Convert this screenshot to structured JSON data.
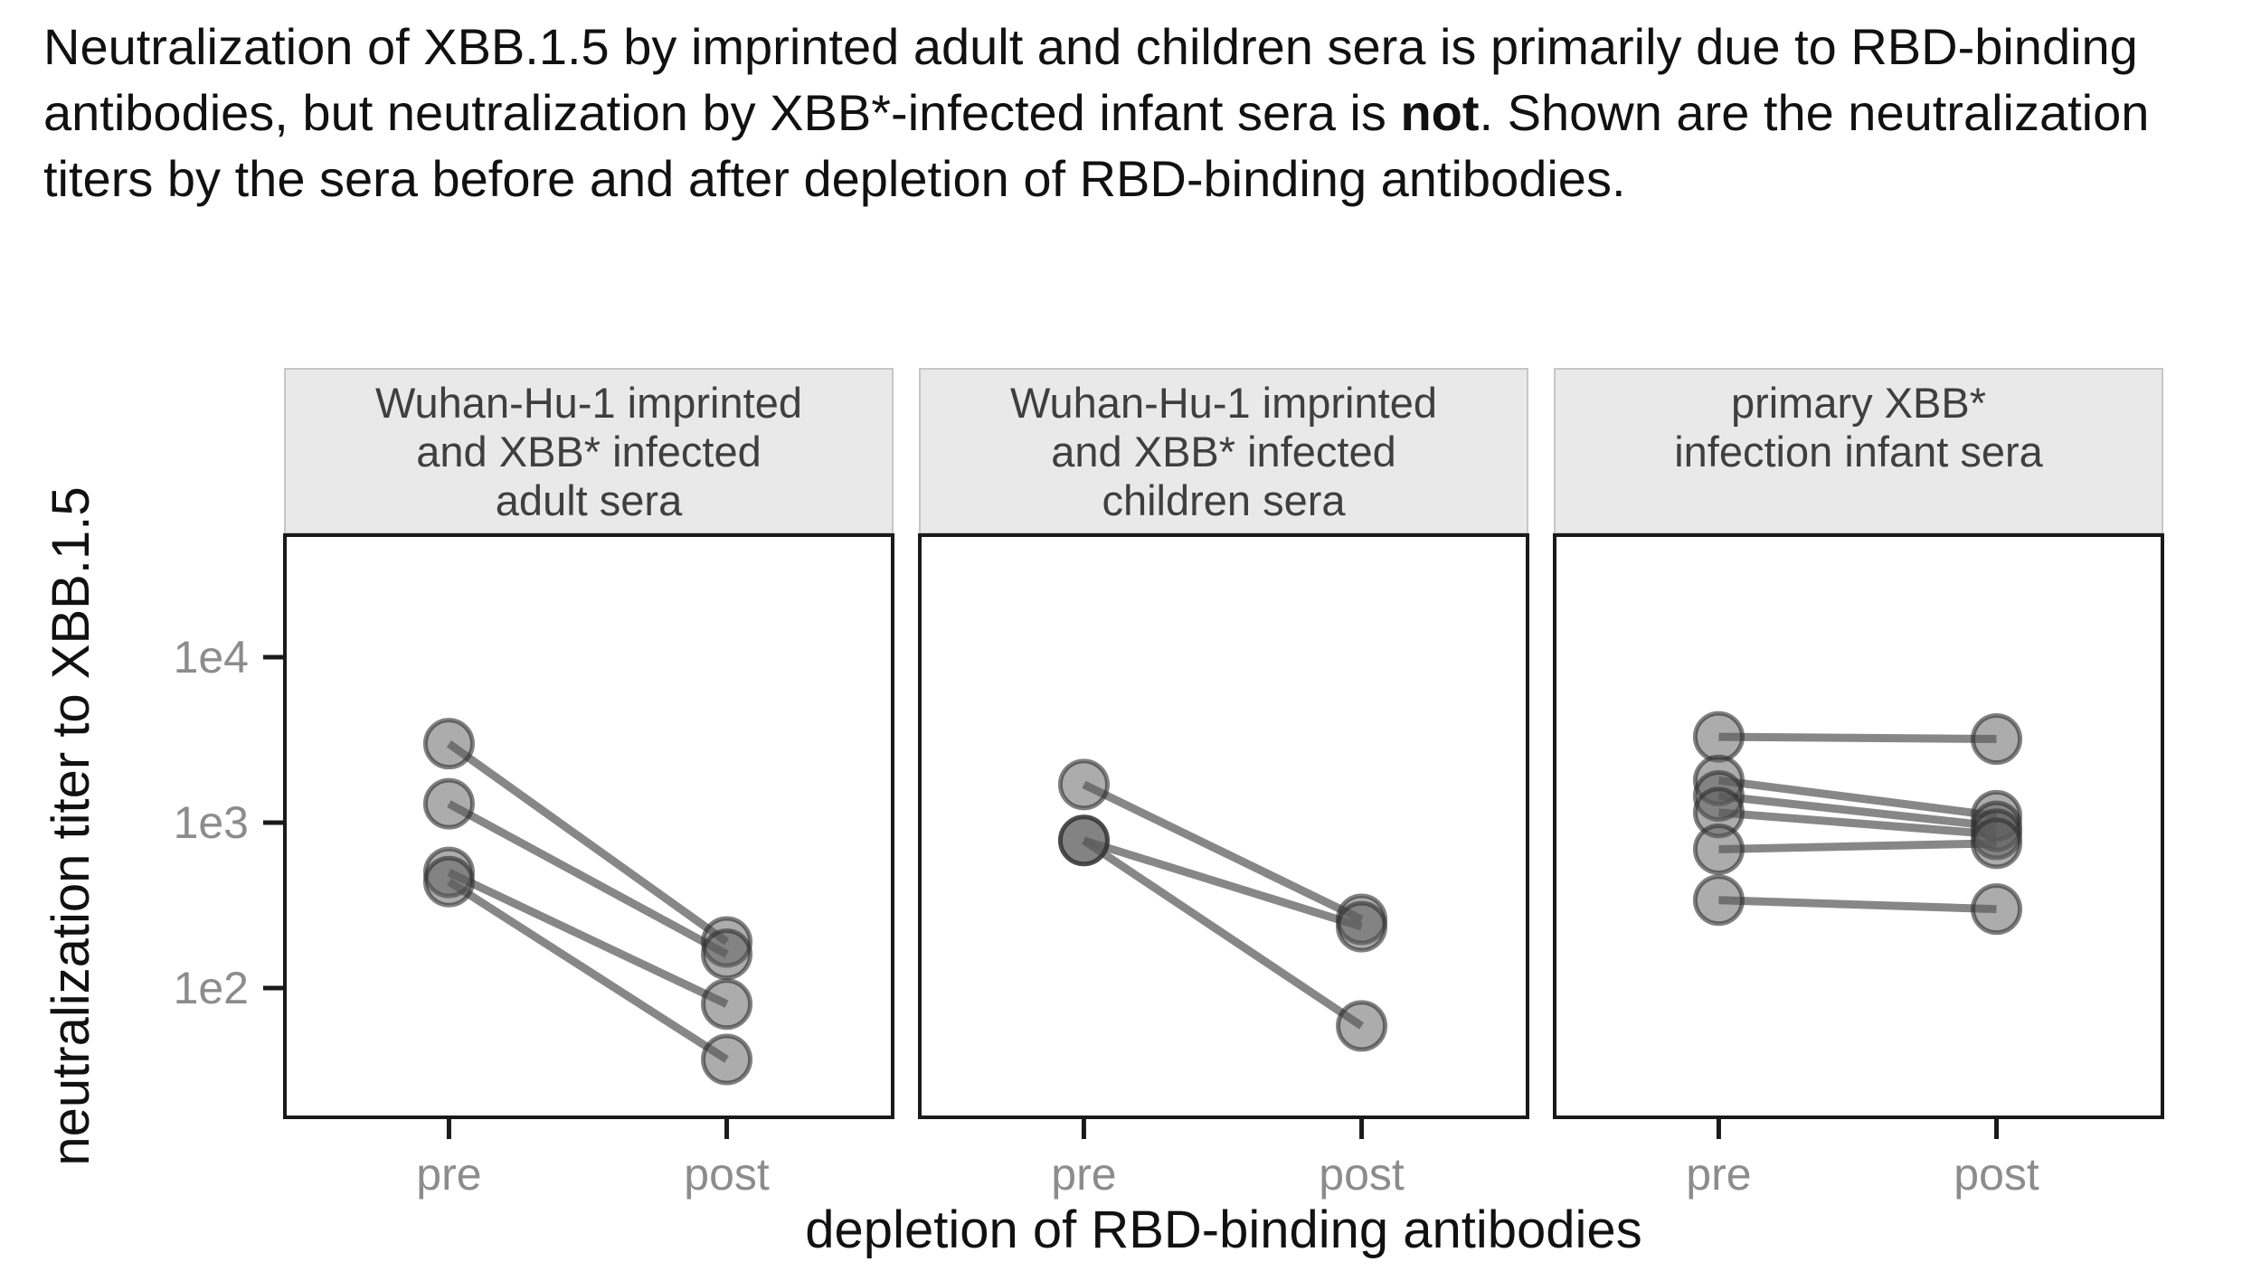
{
  "caption": {
    "before_bold": "Neutralization of XBB.1.5 by imprinted adult and children sera is primarily due to RBD-binding antibodies, but neutralization by XBB*-infected infant sera is ",
    "bold": "not",
    "after_bold": ". Shown are the neutralization titers by the sera before and after depletion of RBD-binding antibodies."
  },
  "chart_data": {
    "type": "line",
    "subtype": "paired-dot-slope-plot",
    "x_categories": [
      "pre",
      "post"
    ],
    "xlabel": "depletion of RBD-binding antibodies",
    "ylabel": "neutralization titer to XBB.1.5",
    "y_scale": "log10",
    "ylim": [
      17,
      55000
    ],
    "grid": "off",
    "legend": "none",
    "y_ticks": [
      {
        "value": 10000,
        "label": "1e4"
      },
      {
        "value": 1000,
        "label": "1e3"
      },
      {
        "value": 100,
        "label": "1e2"
      }
    ],
    "panels": [
      {
        "title_lines": [
          "Wuhan-Hu-1 imprinted",
          "and XBB* infected",
          "adult sera"
        ],
        "series": [
          {
            "pre": 3000,
            "post": 190
          },
          {
            "pre": 1300,
            "post": 160
          },
          {
            "pre": 500,
            "post": 80
          },
          {
            "pre": 440,
            "post": 37
          }
        ]
      },
      {
        "title_lines": [
          "Wuhan-Hu-1 imprinted",
          "and XBB* infected",
          "children sera"
        ],
        "series": [
          {
            "pre": 1700,
            "post": 260
          },
          {
            "pre": 780,
            "post": 235
          },
          {
            "pre": 780,
            "post": 59
          }
        ]
      },
      {
        "title_lines": [
          "primary XBB*",
          "infection infant sera"
        ],
        "series": [
          {
            "pre": 3300,
            "post": 3200
          },
          {
            "pre": 1800,
            "post": 1100
          },
          {
            "pre": 1450,
            "post": 950
          },
          {
            "pre": 1150,
            "post": 850
          },
          {
            "pre": 690,
            "post": 750
          },
          {
            "pre": 340,
            "post": 300
          }
        ]
      }
    ]
  },
  "style": {
    "background": "#ffffff",
    "caption_color": "#111111",
    "header_bg": "#e9e9e9",
    "header_border": "#c6c6c6",
    "header_text": "#3f3f3f",
    "panel_border": "#1a1a1a",
    "tick_text": "#8c8c8c",
    "tick_mark": "#1a1a1a",
    "axis_title_color": "#111111",
    "line_color": "rgba(105,105,105,0.8)",
    "point_fill": "rgba(90,90,90,0.5)",
    "point_stroke": "rgba(45,45,45,0.6)"
  }
}
